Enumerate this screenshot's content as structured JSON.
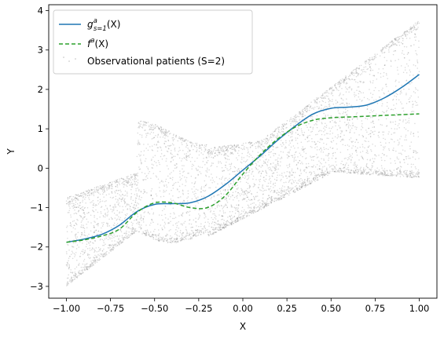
{
  "chart_data": {
    "type": "line",
    "title": "",
    "xlabel": "X",
    "ylabel": "Y",
    "xlim": [
      -1.1,
      1.1
    ],
    "ylim": [
      -3.3,
      4.15
    ],
    "xticks": [
      -1.0,
      -0.75,
      -0.5,
      -0.25,
      0.0,
      0.25,
      0.5,
      0.75,
      1.0
    ],
    "xtick_labels": [
      "−1.00",
      "−0.75",
      "−0.50",
      "−0.25",
      "0.00",
      "0.25",
      "0.50",
      "0.75",
      "1.00"
    ],
    "yticks": [
      -3,
      -2,
      -1,
      0,
      1,
      2,
      3,
      4
    ],
    "ytick_labels": [
      "−3",
      "−2",
      "−1",
      "0",
      "1",
      "2",
      "3",
      "4"
    ],
    "grid": false,
    "legend_position": "top-left",
    "series": [
      {
        "name_parts": [
          "g",
          "s=1",
          "a",
          "(X)"
        ],
        "color": "#1f77b4",
        "style": "solid",
        "x": [
          -1.0,
          -0.9,
          -0.8,
          -0.7,
          -0.6,
          -0.5,
          -0.4,
          -0.3,
          -0.2,
          -0.1,
          0.0,
          0.1,
          0.2,
          0.3,
          0.4,
          0.5,
          0.6,
          0.7,
          0.8,
          0.9,
          1.0
        ],
        "y": [
          -1.88,
          -1.8,
          -1.68,
          -1.45,
          -1.1,
          -0.92,
          -0.9,
          -0.88,
          -0.72,
          -0.42,
          -0.05,
          0.32,
          0.72,
          1.08,
          1.38,
          1.52,
          1.55,
          1.6,
          1.78,
          2.05,
          2.38
        ]
      },
      {
        "name_parts": [
          "f",
          "",
          "a",
          "(X)"
        ],
        "color": "#2ca02c",
        "style": "dashed",
        "x": [
          -1.0,
          -0.9,
          -0.8,
          -0.7,
          -0.6,
          -0.5,
          -0.4,
          -0.3,
          -0.2,
          -0.1,
          0.0,
          0.1,
          0.2,
          0.3,
          0.4,
          0.5,
          0.6,
          0.7,
          0.8,
          0.9,
          1.0
        ],
        "y": [
          -1.88,
          -1.82,
          -1.72,
          -1.55,
          -1.12,
          -0.88,
          -0.88,
          -1.0,
          -1.0,
          -0.7,
          -0.15,
          0.35,
          0.75,
          1.05,
          1.22,
          1.28,
          1.3,
          1.32,
          1.34,
          1.36,
          1.38
        ]
      }
    ],
    "scatter": {
      "name": "Observational patients (S=2)",
      "color": "#808080",
      "opacity": 0.3,
      "count": 5000
    }
  }
}
